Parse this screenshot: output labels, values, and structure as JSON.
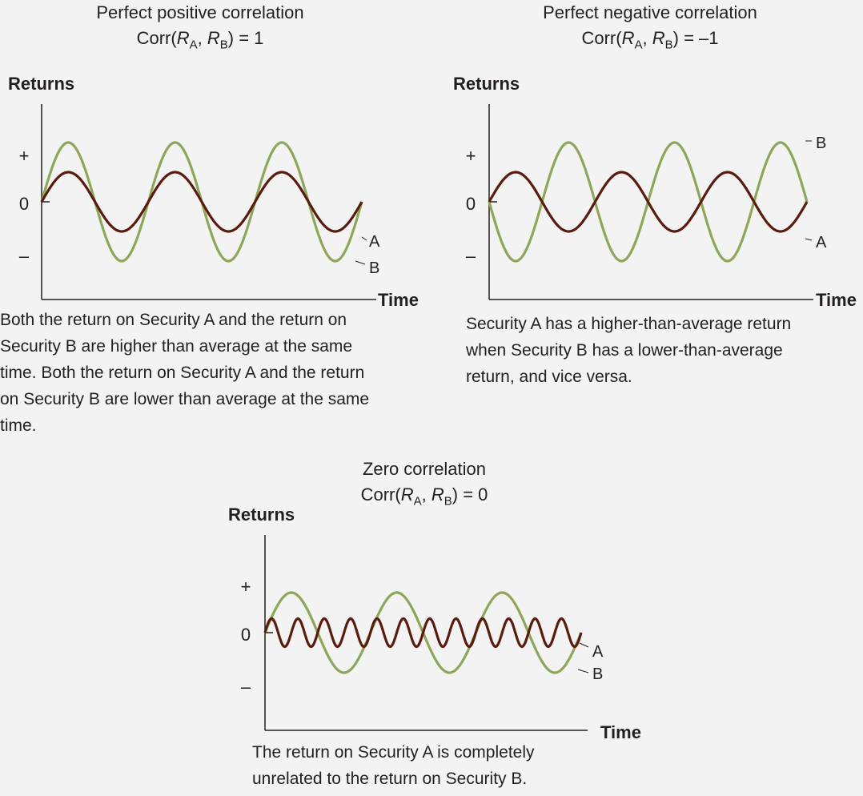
{
  "colors": {
    "series_a": "#5b1a0e",
    "series_b": "#8ea65a",
    "axis": "#231f20"
  },
  "panels": [
    {
      "title": "Perfect positive correlation",
      "corr_prefix": "Corr(",
      "corr_ra": "R",
      "corr_a_sub": "A",
      "corr_sep": ", ",
      "corr_rb": "R",
      "corr_b_sub": "B",
      "corr_suffix": ") = 1",
      "ylabel": "Returns",
      "xlabel": "Time",
      "ticks": {
        "plus": "+",
        "zero": "0",
        "minus": "–"
      },
      "series_a_label": "A",
      "series_b_label": "B",
      "caption": "Both the return on Security A and the return on Security B are higher than average at the same time. Both the return on Security A and the return on Security B are lower than average at the same time."
    },
    {
      "title": "Perfect negative correlation",
      "corr_prefix": "Corr(",
      "corr_ra": "R",
      "corr_a_sub": "A",
      "corr_sep": ", ",
      "corr_rb": "R",
      "corr_b_sub": "B",
      "corr_suffix": ") = –1",
      "ylabel": "Returns",
      "xlabel": "Time",
      "ticks": {
        "plus": "+",
        "zero": "0",
        "minus": "–"
      },
      "series_a_label": "A",
      "series_b_label": "B",
      "caption": "Security A has a higher-than-average return when Security B has a lower-than-average return, and vice versa."
    },
    {
      "title": "Zero correlation",
      "corr_prefix": "Corr(",
      "corr_ra": "R",
      "corr_a_sub": "A",
      "corr_sep": ", ",
      "corr_rb": "R",
      "corr_b_sub": "B",
      "corr_suffix": ") = 0",
      "ylabel": "Returns",
      "xlabel": "Time",
      "ticks": {
        "plus": "+",
        "zero": "0",
        "minus": "–"
      },
      "series_a_label": "A",
      "series_b_label": "B",
      "caption": "The return on Security A is completely unrelated to the return on Security B."
    }
  ],
  "chart_data": [
    {
      "type": "line",
      "series": [
        {
          "name": "A",
          "shape": "sine",
          "amplitude": 0.5,
          "cycles": 3,
          "phase": 0
        },
        {
          "name": "B",
          "shape": "sine",
          "amplitude": 1.0,
          "cycles": 3,
          "phase": 0
        }
      ],
      "correlation": 1
    },
    {
      "type": "line",
      "series": [
        {
          "name": "A",
          "shape": "sine",
          "amplitude": 0.5,
          "cycles": 3,
          "phase": 0
        },
        {
          "name": "B",
          "shape": "sine",
          "amplitude": 1.0,
          "cycles": 3,
          "phase": 180
        }
      ],
      "correlation": -1
    },
    {
      "type": "line",
      "series": [
        {
          "name": "A",
          "shape": "sine",
          "amplitude": 0.35,
          "cycles": 12,
          "phase": 0
        },
        {
          "name": "B",
          "shape": "sine",
          "amplitude": 1.0,
          "cycles": 3,
          "phase": 0
        }
      ],
      "correlation": 0
    }
  ]
}
